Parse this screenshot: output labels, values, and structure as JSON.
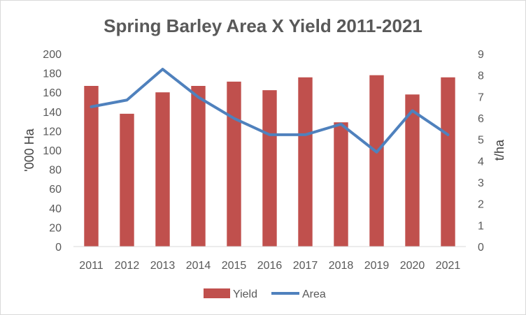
{
  "chart_data": {
    "type": "bar",
    "title": "Spring Barley Area X Yield 2011-2021",
    "categories": [
      "2011",
      "2012",
      "2013",
      "2014",
      "2015",
      "2016",
      "2017",
      "2018",
      "2019",
      "2020",
      "2021"
    ],
    "ylabel": "'000 Ha",
    "y2label": "t/ha",
    "ylim": [
      0,
      200
    ],
    "y2lim": [
      0,
      9
    ],
    "yticks": [
      "0",
      "20",
      "40",
      "60",
      "80",
      "100",
      "120",
      "140",
      "160",
      "180",
      "200"
    ],
    "y2ticks": [
      "0",
      "1",
      "2",
      "3",
      "4",
      "5",
      "6",
      "7",
      "8",
      "9"
    ],
    "grid": false,
    "legend_position": "bottom",
    "series": [
      {
        "name": "Yield",
        "type": "bar",
        "axis": "right",
        "color": "#c0504d",
        "values": [
          7.5,
          6.2,
          7.2,
          7.5,
          7.7,
          7.3,
          7.9,
          5.8,
          8.0,
          7.1,
          7.9
        ]
      },
      {
        "name": "Area",
        "type": "line",
        "axis": "left",
        "color": "#4f81bd",
        "values": [
          145,
          152,
          184,
          155,
          133,
          116,
          116,
          127,
          98,
          141,
          116
        ]
      }
    ]
  }
}
